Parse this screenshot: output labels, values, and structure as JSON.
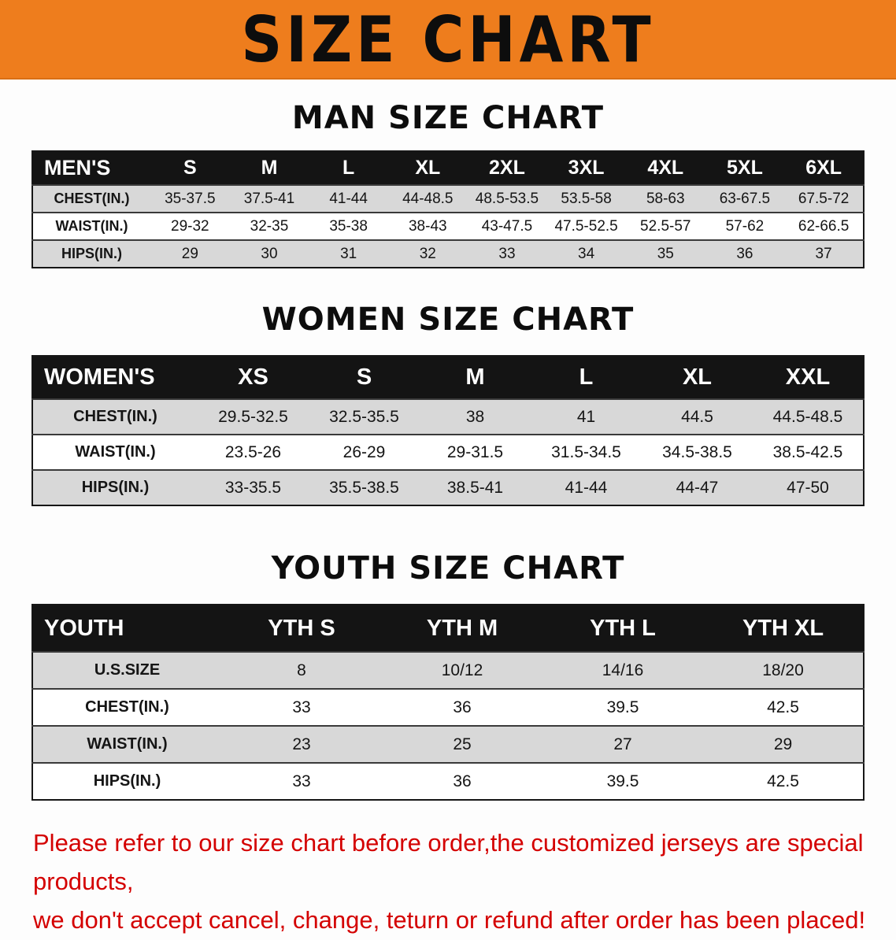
{
  "banner": {
    "title": "SIZE CHART",
    "bg_color": "#ee7d1d",
    "text_color": "#0d0d0d"
  },
  "sections": {
    "men": {
      "heading": "MAN SIZE CHART",
      "table": {
        "header": [
          "MEN'S",
          "S",
          "M",
          "L",
          "XL",
          "2XL",
          "3XL",
          "4XL",
          "5XL",
          "6XL"
        ],
        "rows": [
          [
            "CHEST(IN.)",
            "35-37.5",
            "37.5-41",
            "41-44",
            "44-48.5",
            "48.5-53.5",
            "53.5-58",
            "58-63",
            "63-67.5",
            "67.5-72"
          ],
          [
            "WAIST(IN.)",
            "29-32",
            "32-35",
            "35-38",
            "38-43",
            "43-47.5",
            "47.5-52.5",
            "52.5-57",
            "57-62",
            "62-66.5"
          ],
          [
            "HIPS(IN.)",
            "29",
            "30",
            "31",
            "32",
            "33",
            "34",
            "35",
            "36",
            "37"
          ]
        ]
      }
    },
    "women": {
      "heading": "WOMEN SIZE CHART",
      "table": {
        "header": [
          "WOMEN'S",
          "XS",
          "S",
          "M",
          "L",
          "XL",
          "XXL"
        ],
        "rows": [
          [
            "CHEST(IN.)",
            "29.5-32.5",
            "32.5-35.5",
            "38",
            "41",
            "44.5",
            "44.5-48.5"
          ],
          [
            "WAIST(IN.)",
            "23.5-26",
            "26-29",
            "29-31.5",
            "31.5-34.5",
            "34.5-38.5",
            "38.5-42.5"
          ],
          [
            "HIPS(IN.)",
            "33-35.5",
            "35.5-38.5",
            "38.5-41",
            "41-44",
            "44-47",
            "47-50"
          ]
        ]
      }
    },
    "youth": {
      "heading": "YOUTH SIZE CHART",
      "table": {
        "header": [
          "YOUTH",
          "YTH S",
          "YTH M",
          "YTH L",
          "YTH XL"
        ],
        "rows": [
          [
            "U.S.SIZE",
            "8",
            "10/12",
            "14/16",
            "18/20"
          ],
          [
            "CHEST(IN.)",
            "33",
            "36",
            "39.5",
            "42.5"
          ],
          [
            "WAIST(IN.)",
            "23",
            "25",
            "27",
            "29"
          ],
          [
            "HIPS(IN.)",
            "33",
            "36",
            "39.5",
            "42.5"
          ]
        ]
      }
    }
  },
  "disclaimer": {
    "line1": "Please refer to our size chart before order,the customized jerseys are special products,",
    "line2": "we don't accept cancel, change, teturn or refund after order has been placed!",
    "color": "#d40000"
  }
}
